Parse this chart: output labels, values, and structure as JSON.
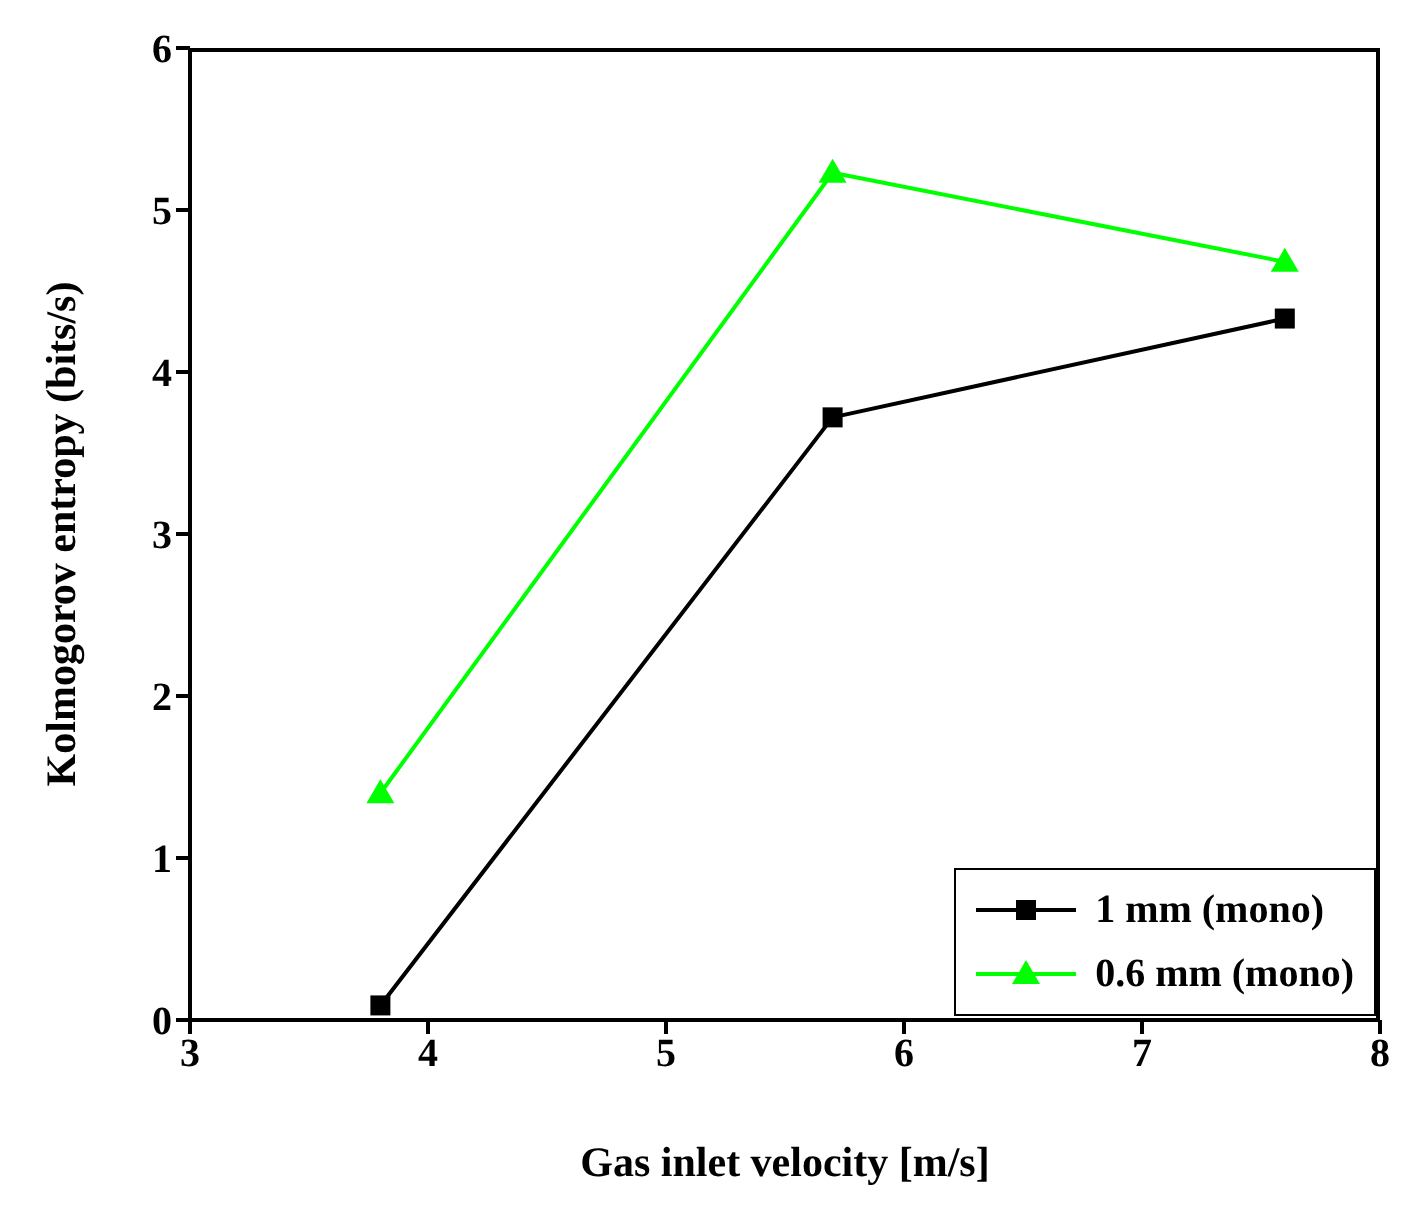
{
  "chart_data": {
    "type": "line",
    "xlabel": "Gas inlet velocity [m/s]",
    "ylabel": "Kolmogorov entropy (bits/s)",
    "x": [
      3.8,
      5.7,
      7.6
    ],
    "series": [
      {
        "name": "1 mm (mono)",
        "color": "#000000",
        "marker": "square",
        "values": [
          0.09,
          3.72,
          4.33
        ]
      },
      {
        "name": "0.6 mm (mono)",
        "color": "#00ff00",
        "marker": "triangle",
        "values": [
          1.4,
          5.23,
          4.68
        ]
      }
    ],
    "xlim": [
      3,
      8
    ],
    "xticks": [
      3,
      4,
      5,
      6,
      7,
      8
    ],
    "ylim": [
      0,
      6
    ],
    "yticks": [
      0,
      1,
      2,
      3,
      4,
      5,
      6
    ],
    "grid": false,
    "legend": "bottom right",
    "line_style": "solid"
  }
}
